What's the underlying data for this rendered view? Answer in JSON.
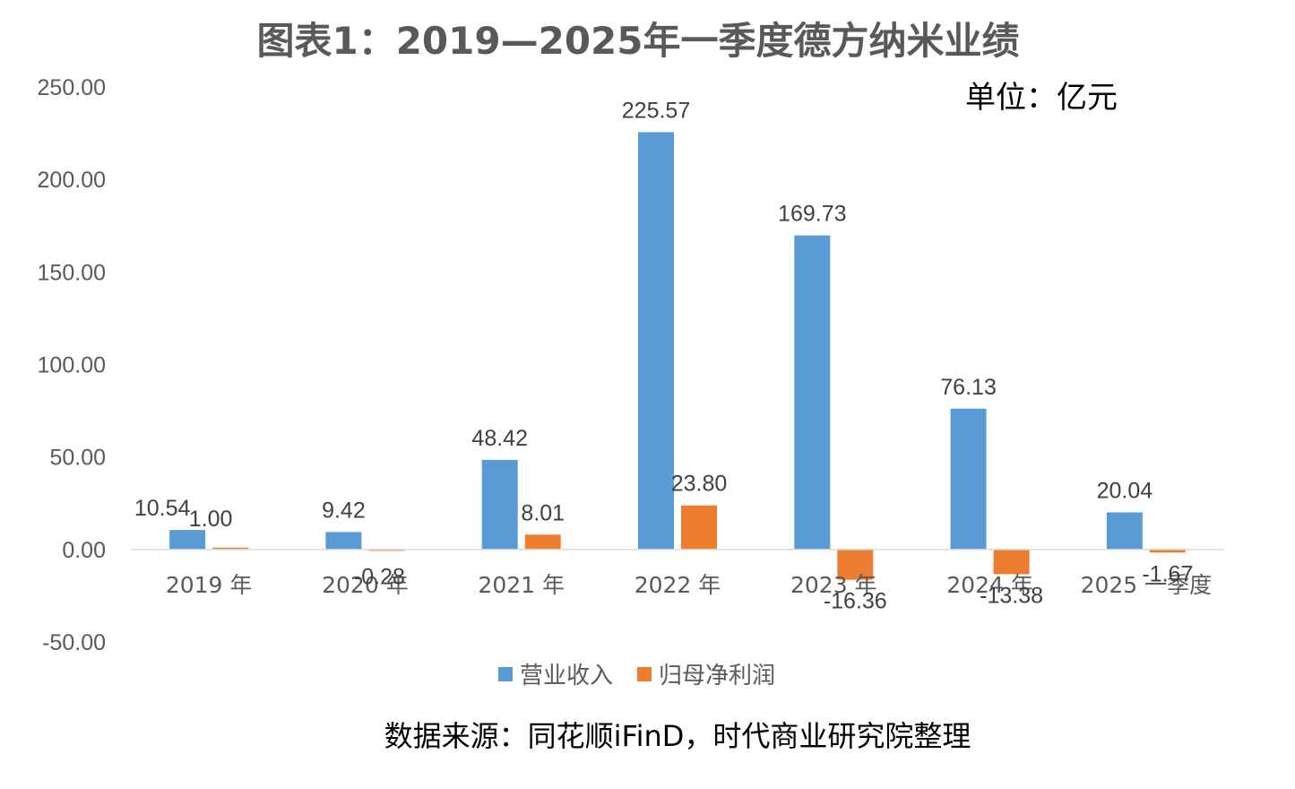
{
  "chart_data": {
    "type": "bar",
    "title": "图表1：2019—2025年一季度德方纳米业绩",
    "unit_label": "单位：亿元",
    "source_note": "数据来源：同花顺iFinD，时代商业研究院整理",
    "categories": [
      "2019 年",
      "2020 年",
      "2021 年",
      "2022 年",
      "2023 年",
      "2024 年",
      "2025 一季度"
    ],
    "series": [
      {
        "name": "营业收入",
        "color": "#5B9BD5",
        "values": [
          10.54,
          9.42,
          48.42,
          225.57,
          169.73,
          76.13,
          20.04
        ],
        "labels": [
          "10.54",
          "9.42",
          "48.42",
          "225.57",
          "169.73",
          "76.13",
          "20.04"
        ]
      },
      {
        "name": "归母净利润",
        "color": "#ED7D31",
        "values": [
          1.0,
          -0.28,
          8.01,
          23.8,
          -16.36,
          -13.38,
          -1.67
        ],
        "labels": [
          "1.00",
          "-0.28",
          "8.01",
          "23.80",
          "-16.36",
          "-13.38",
          "-1.67"
        ]
      }
    ],
    "ylim": [
      -50,
      250
    ],
    "yticks": [
      "-50.00",
      "0.00",
      "50.00",
      "100.00",
      "150.00",
      "200.00",
      "250.00"
    ],
    "ytick_values": [
      -50,
      0,
      50,
      100,
      150,
      200,
      250
    ],
    "grid": false,
    "legend_position": "bottom"
  }
}
